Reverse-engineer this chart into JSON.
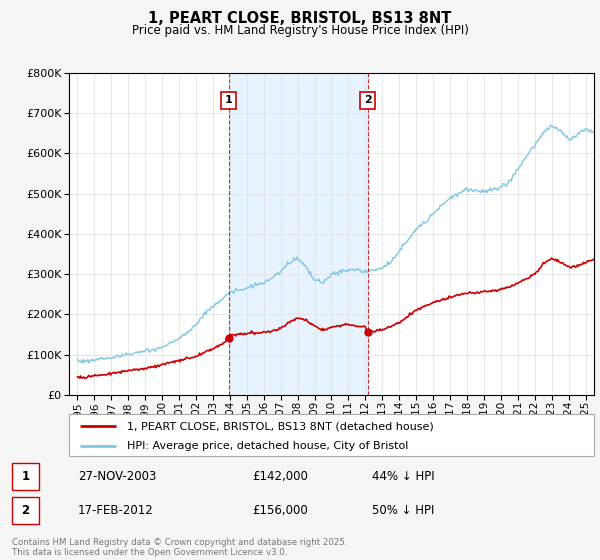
{
  "title": "1, PEART CLOSE, BRISTOL, BS13 8NT",
  "subtitle": "Price paid vs. HM Land Registry's House Price Index (HPI)",
  "ylim": [
    0,
    800000
  ],
  "yticks": [
    0,
    100000,
    200000,
    300000,
    400000,
    500000,
    600000,
    700000,
    800000
  ],
  "xlim_start": 1994.5,
  "xlim_end": 2025.5,
  "xticks": [
    1995,
    1996,
    1997,
    1998,
    1999,
    2000,
    2001,
    2002,
    2003,
    2004,
    2005,
    2006,
    2007,
    2008,
    2009,
    2010,
    2011,
    2012,
    2013,
    2014,
    2015,
    2016,
    2017,
    2018,
    2019,
    2020,
    2021,
    2022,
    2023,
    2024,
    2025
  ],
  "hpi_color": "#7ec8e3",
  "price_color": "#cc0000",
  "vline_color": "#cc0000",
  "shade_color": "#ddeeff",
  "transaction1_x": 2003.92,
  "transaction1_price": 142000,
  "transaction1_label": "1",
  "transaction2_x": 2012.13,
  "transaction2_price": 156000,
  "transaction2_label": "2",
  "legend_entry1": "1, PEART CLOSE, BRISTOL, BS13 8NT (detached house)",
  "legend_entry2": "HPI: Average price, detached house, City of Bristol",
  "annotation1_date": "27-NOV-2003",
  "annotation1_price": "£142,000",
  "annotation1_pct": "44% ↓ HPI",
  "annotation2_date": "17-FEB-2012",
  "annotation2_price": "£156,000",
  "annotation2_pct": "50% ↓ HPI",
  "footer": "Contains HM Land Registry data © Crown copyright and database right 2025.\nThis data is licensed under the Open Government Licence v3.0.",
  "background_color": "#f5f5f5",
  "plot_bg_color": "#ffffff"
}
